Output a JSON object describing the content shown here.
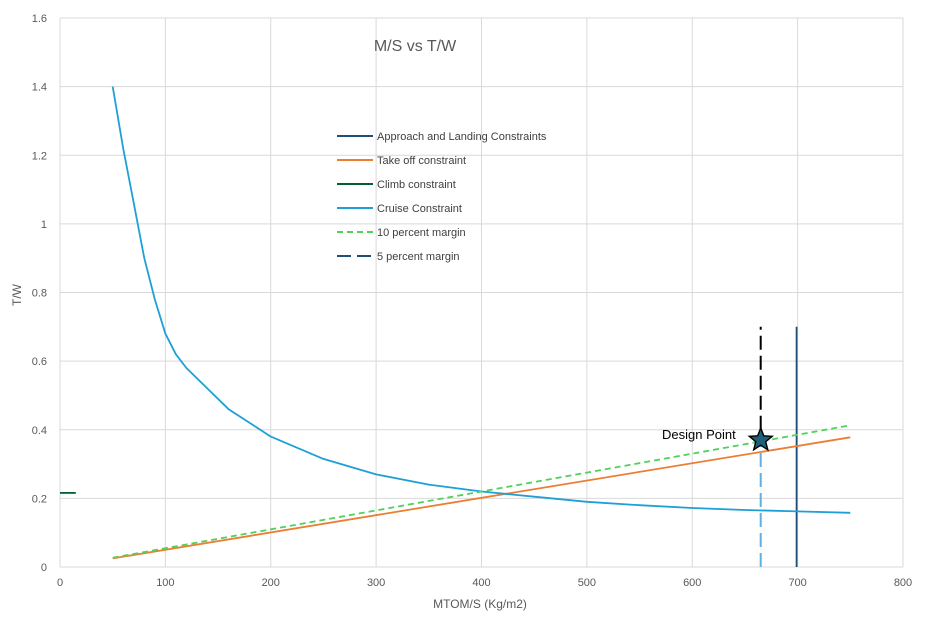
{
  "chart_data": {
    "type": "line",
    "title": "M/S vs T/W",
    "xlabel": "MTOM/S (Kg/m2)",
    "ylabel": "T/W",
    "xlim": [
      0,
      800
    ],
    "ylim": [
      0,
      1.6
    ],
    "xticks": [
      "0",
      "100",
      "200",
      "300",
      "400",
      "500",
      "600",
      "700",
      "800"
    ],
    "yticks": [
      "0",
      "0.2",
      "0.4",
      "0.6",
      "0.8",
      "1",
      "1.2",
      "1.4",
      "1.6"
    ],
    "grid": true,
    "legend_position": "upper-center",
    "series": [
      {
        "name": "Approach and Landing Constraints",
        "color": "#1f4e79",
        "dash": "solid",
        "x": [
          699,
          699
        ],
        "y": [
          0,
          0.7
        ]
      },
      {
        "name": "Take off constraint",
        "color": "#ed7d31",
        "dash": "solid",
        "x": [
          50,
          750
        ],
        "y": [
          0.025,
          0.378
        ]
      },
      {
        "name": "Climb constraint",
        "color": "#00612e",
        "dash": "solid",
        "x": [
          0,
          15
        ],
        "y": [
          0.216,
          0.216
        ]
      },
      {
        "name": "Cruise Constraint",
        "color": "#1ea0d6",
        "dash": "solid",
        "x": [
          50,
          60,
          70,
          80,
          90,
          100,
          110,
          120,
          140,
          160,
          180,
          200,
          250,
          300,
          350,
          400,
          450,
          500,
          550,
          600,
          650,
          700,
          750
        ],
        "y": [
          1.4,
          1.22,
          1.06,
          0.9,
          0.78,
          0.68,
          0.62,
          0.58,
          0.52,
          0.46,
          0.42,
          0.38,
          0.315,
          0.27,
          0.24,
          0.22,
          0.205,
          0.19,
          0.18,
          0.172,
          0.166,
          0.162,
          0.158
        ]
      },
      {
        "name": "10 percent margin",
        "color": "#4fd15a",
        "dash": "dashed",
        "x": [
          50,
          750
        ],
        "y": [
          0.027,
          0.413
        ]
      },
      {
        "name": "5 percent margin",
        "color": "#1f4e79",
        "dash": "long-dashed",
        "segments": [
          {
            "x": [
              665,
              665
            ],
            "y": [
              0.0,
              0.36
            ],
            "color": "#5fb0e0"
          },
          {
            "x": [
              665,
              665
            ],
            "y": [
              0.4,
              0.7
            ],
            "color": "#000000"
          }
        ]
      }
    ],
    "annotations": [
      {
        "text": "Design Point",
        "x": 665,
        "y": 0.37,
        "marker": "star",
        "marker_color": "#1f5f7a"
      }
    ]
  }
}
